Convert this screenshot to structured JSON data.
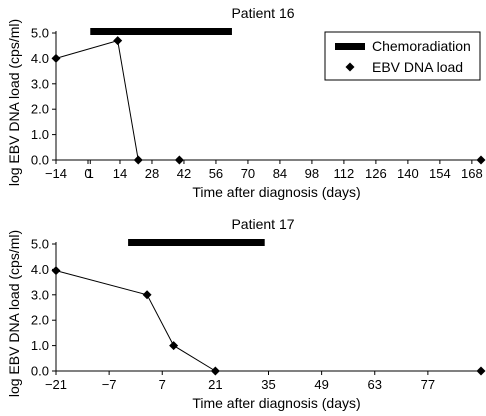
{
  "colors": {
    "ink": "#000000",
    "background": "#ffffff"
  },
  "legend": {
    "items": [
      {
        "label": "Chemoradiation",
        "marker": "thick-bar"
      },
      {
        "label": "EBV DNA load",
        "marker": "diamond"
      }
    ],
    "placement": "top-right of first panel"
  },
  "chart_data": [
    {
      "type": "line",
      "title": "Patient 16",
      "xlabel": "Time after diagnosis (days)",
      "ylabel": "log EBV DNA load (cps/ml)",
      "xlim": [
        -14,
        172
      ],
      "ylim": [
        0,
        5
      ],
      "x_ticks": [
        -14,
        0,
        1,
        14,
        28,
        42,
        56,
        70,
        84,
        98,
        112,
        126,
        140,
        154,
        168
      ],
      "x_tick_labels": [
        "−14",
        "0",
        "1",
        "14",
        "28",
        "42",
        "56",
        "70",
        "84",
        "98",
        "112",
        "126",
        "140",
        "154",
        "168"
      ],
      "y_ticks": [
        0,
        1,
        2,
        3,
        4,
        5
      ],
      "y_tick_labels": [
        "0.0",
        "1.0",
        "2.0",
        "3.0",
        "4.0",
        "5.0"
      ],
      "grid": false,
      "chemoradiation": {
        "start": 1,
        "end": 63
      },
      "series": [
        {
          "name": "EBV DNA load",
          "points": [
            [
              -14,
              4.0
            ],
            [
              13,
              4.7
            ],
            [
              22,
              0.0
            ],
            [
              40,
              0.0
            ],
            [
              172,
              0.0
            ]
          ],
          "connected_count": 3
        }
      ]
    },
    {
      "type": "line",
      "title": "Patient 17",
      "xlabel": "Time after diagnosis (days)",
      "ylabel": "log EBV DNA load (cps/ml)",
      "xlim": [
        -21,
        91
      ],
      "ylim": [
        0,
        5
      ],
      "x_ticks": [
        -21,
        -7,
        7,
        21,
        35,
        49,
        63,
        77
      ],
      "x_tick_labels": [
        "−21",
        "−7",
        "7",
        "21",
        "35",
        "49",
        "63",
        "77"
      ],
      "y_ticks": [
        0,
        1,
        2,
        3,
        4,
        5
      ],
      "y_tick_labels": [
        "0.0",
        "1.0",
        "2.0",
        "3.0",
        "4.0",
        "5.0"
      ],
      "grid": false,
      "chemoradiation": {
        "start": -2,
        "end": 34
      },
      "series": [
        {
          "name": "EBV DNA load",
          "points": [
            [
              -21,
              3.95
            ],
            [
              3,
              3.0
            ],
            [
              10,
              1.0
            ],
            [
              21,
              0.0
            ],
            [
              91,
              0.0
            ]
          ],
          "connected_count": 4
        }
      ]
    }
  ]
}
